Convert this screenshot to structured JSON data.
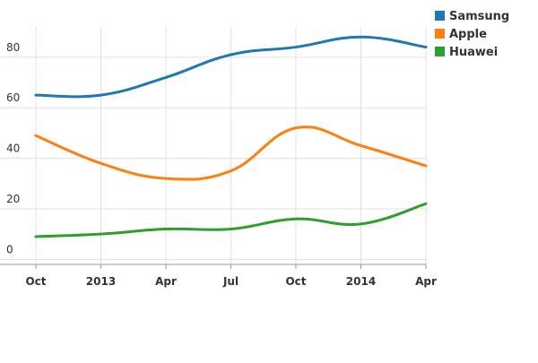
{
  "chart_data": {
    "type": "line",
    "x": [
      "2012-10",
      "2013-01",
      "2013-04",
      "2013-07",
      "2013-10",
      "2014-01",
      "2014-04"
    ],
    "x_tick_labels": [
      "Oct",
      "2013",
      "Apr",
      "Jul",
      "Oct",
      "2014",
      "Apr"
    ],
    "y_tick_labels": [
      "0",
      "20",
      "40",
      "60",
      "80"
    ],
    "ylim": [
      -2,
      92
    ],
    "grid": true,
    "curve": "smooth",
    "legend_position": "top-right",
    "series": [
      {
        "name": "Samsung",
        "color": "#1f77b4",
        "values": [
          65,
          65,
          72,
          81,
          84,
          88,
          84
        ]
      },
      {
        "name": "Apple",
        "color": "#ff7f0e",
        "values": [
          49,
          38,
          32,
          35,
          52,
          45,
          37
        ]
      },
      {
        "name": "Huawei",
        "color": "#2ca02c",
        "values": [
          9,
          10,
          12,
          12,
          16,
          14,
          22
        ]
      }
    ]
  }
}
